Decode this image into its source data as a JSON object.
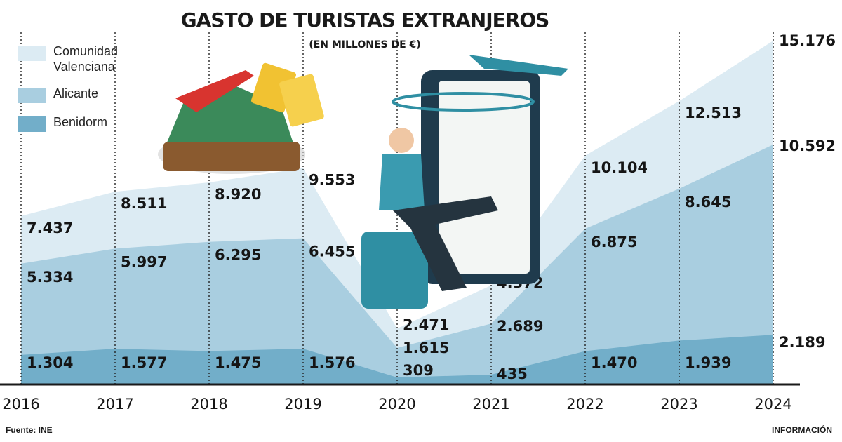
{
  "chart_data": {
    "type": "area",
    "title": "GASTO DE TURISTAS EXTRANJEROS",
    "subtitle": "(EN MILLONES DE €)",
    "x": [
      "2016",
      "2017",
      "2018",
      "2019",
      "2020",
      "2021",
      "2022",
      "2023",
      "2024"
    ],
    "series": [
      {
        "name": "Comunidad Valenciana",
        "color": "#dcebf3",
        "values": [
          7437,
          8511,
          8920,
          9553,
          2471,
          4372,
          10104,
          12513,
          15176
        ],
        "labels": [
          "7.437",
          "8.511",
          "8.920",
          "9.553",
          "2.471",
          "4.372",
          "10.104",
          "12.513",
          "15.176"
        ]
      },
      {
        "name": "Alicante",
        "color": "#a9cee0",
        "values": [
          5334,
          5997,
          6295,
          6455,
          1615,
          2689,
          6875,
          8645,
          10592
        ],
        "labels": [
          "5.334",
          "5.997",
          "6.295",
          "6.455",
          "1.615",
          "2.689",
          "6.875",
          "8.645",
          "10.592"
        ]
      },
      {
        "name": "Benidorm",
        "color": "#72aec9",
        "values": [
          1304,
          1577,
          1475,
          1576,
          309,
          435,
          1470,
          1939,
          2189
        ],
        "labels": [
          "1.304",
          "1.577",
          "1.475",
          "1.576",
          "309",
          "435",
          "1.470",
          "1.939",
          "2.189"
        ]
      }
    ],
    "ylim": [
      0,
      15176
    ],
    "legend_position": "top-left",
    "grid": "dotted vertical lines at each year"
  },
  "footer": {
    "source": "Fuente: INE",
    "brand": "INFORMACIÓN"
  }
}
